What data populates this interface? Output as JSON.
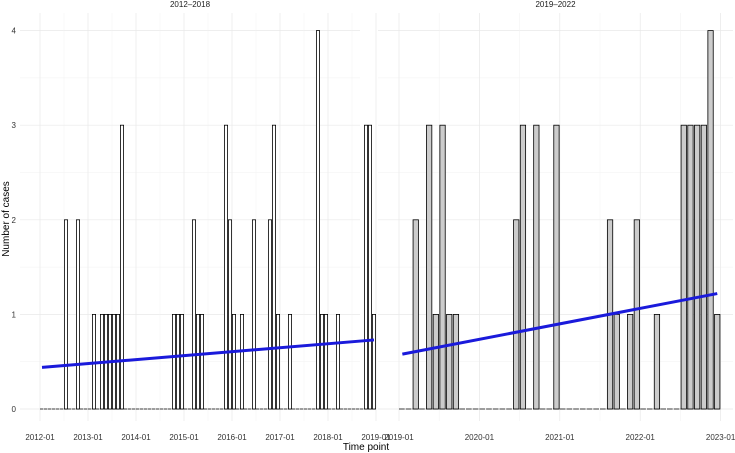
{
  "chart_data": {
    "type": "bar",
    "xlabel": "Time point",
    "ylabel": "Number of cases",
    "ylim": [
      0,
      4
    ],
    "y_ticks": [
      "0",
      "1",
      "2",
      "3",
      "4"
    ],
    "grid": true,
    "trend_color": "#1a1adb",
    "panels": [
      {
        "title": "2012–2018",
        "x_range": [
          "2012-01",
          "2018-12"
        ],
        "x_ticks": [
          "2012-01",
          "2013-01",
          "2014-01",
          "2015-01",
          "2016-01",
          "2017-01",
          "2018-01",
          "2019-01"
        ],
        "bar_fill": "#ffffff",
        "bars": [
          {
            "month": "2012-07",
            "value": 2
          },
          {
            "month": "2012-10",
            "value": 2
          },
          {
            "month": "2013-02",
            "value": 1
          },
          {
            "month": "2013-04",
            "value": 1
          },
          {
            "month": "2013-05",
            "value": 1
          },
          {
            "month": "2013-06",
            "value": 1
          },
          {
            "month": "2013-07",
            "value": 1
          },
          {
            "month": "2013-08",
            "value": 1
          },
          {
            "month": "2013-09",
            "value": 3
          },
          {
            "month": "2014-10",
            "value": 1
          },
          {
            "month": "2014-11",
            "value": 1
          },
          {
            "month": "2014-12",
            "value": 1
          },
          {
            "month": "2015-03",
            "value": 2
          },
          {
            "month": "2015-04",
            "value": 1
          },
          {
            "month": "2015-05",
            "value": 1
          },
          {
            "month": "2015-11",
            "value": 3
          },
          {
            "month": "2015-12",
            "value": 2
          },
          {
            "month": "2016-01",
            "value": 1
          },
          {
            "month": "2016-03",
            "value": 1
          },
          {
            "month": "2016-06",
            "value": 2
          },
          {
            "month": "2016-10",
            "value": 2
          },
          {
            "month": "2016-11",
            "value": 3
          },
          {
            "month": "2016-12",
            "value": 1
          },
          {
            "month": "2017-03",
            "value": 1
          },
          {
            "month": "2017-10",
            "value": 4
          },
          {
            "month": "2017-11",
            "value": 1
          },
          {
            "month": "2017-12",
            "value": 1
          },
          {
            "month": "2018-03",
            "value": 1
          },
          {
            "month": "2018-10",
            "value": 3
          },
          {
            "month": "2018-11",
            "value": 3
          },
          {
            "month": "2018-12",
            "value": 1
          }
        ],
        "trend": [
          {
            "x": "2012-01",
            "y": 0.44
          },
          {
            "x": "2018-12",
            "y": 0.73
          }
        ]
      },
      {
        "title": "2019–2022",
        "x_range": [
          "2019-01",
          "2022-12"
        ],
        "x_ticks": [
          "2019-01",
          "2020-01",
          "2021-01",
          "2022-01",
          "2023-01"
        ],
        "bar_fill": "#cccccc",
        "bars": [
          {
            "month": "2019-03",
            "value": 2
          },
          {
            "month": "2019-05",
            "value": 3
          },
          {
            "month": "2019-06",
            "value": 1
          },
          {
            "month": "2019-07",
            "value": 3
          },
          {
            "month": "2019-08",
            "value": 1
          },
          {
            "month": "2019-09",
            "value": 1
          },
          {
            "month": "2020-06",
            "value": 2
          },
          {
            "month": "2020-07",
            "value": 3
          },
          {
            "month": "2020-09",
            "value": 3
          },
          {
            "month": "2020-12",
            "value": 3
          },
          {
            "month": "2021-08",
            "value": 2
          },
          {
            "month": "2021-09",
            "value": 1
          },
          {
            "month": "2021-11",
            "value": 1
          },
          {
            "month": "2021-12",
            "value": 2
          },
          {
            "month": "2022-03",
            "value": 1
          },
          {
            "month": "2022-07",
            "value": 3
          },
          {
            "month": "2022-08",
            "value": 3
          },
          {
            "month": "2022-09",
            "value": 3
          },
          {
            "month": "2022-10",
            "value": 3
          },
          {
            "month": "2022-11",
            "value": 4
          },
          {
            "month": "2022-12",
            "value": 1
          }
        ],
        "trend": [
          {
            "x": "2019-01",
            "y": 0.58
          },
          {
            "x": "2022-12",
            "y": 1.22
          }
        ]
      }
    ]
  }
}
